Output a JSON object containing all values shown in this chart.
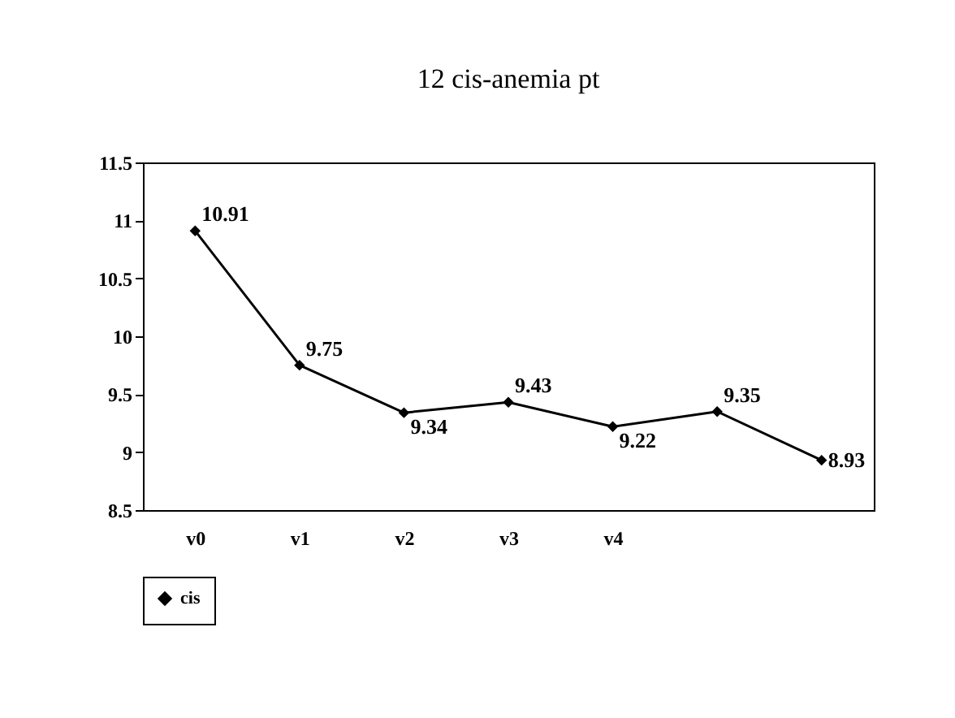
{
  "chart_data": {
    "type": "line",
    "title": "12 cis-anemia pt",
    "categories": [
      "v0",
      "v1",
      "v2",
      "v3",
      "v4",
      null,
      null
    ],
    "series": [
      {
        "name": "cis",
        "color": "#000000",
        "values": [
          10.91,
          9.75,
          9.34,
          9.43,
          9.22,
          9.35,
          8.93
        ]
      }
    ],
    "ylim": [
      8.5,
      11.5
    ],
    "yticks": [
      8.5,
      9,
      9.5,
      10,
      10.5,
      11,
      11.5
    ],
    "data_labels": true,
    "marker": "diamond",
    "legend": "bottom",
    "grid": false
  }
}
